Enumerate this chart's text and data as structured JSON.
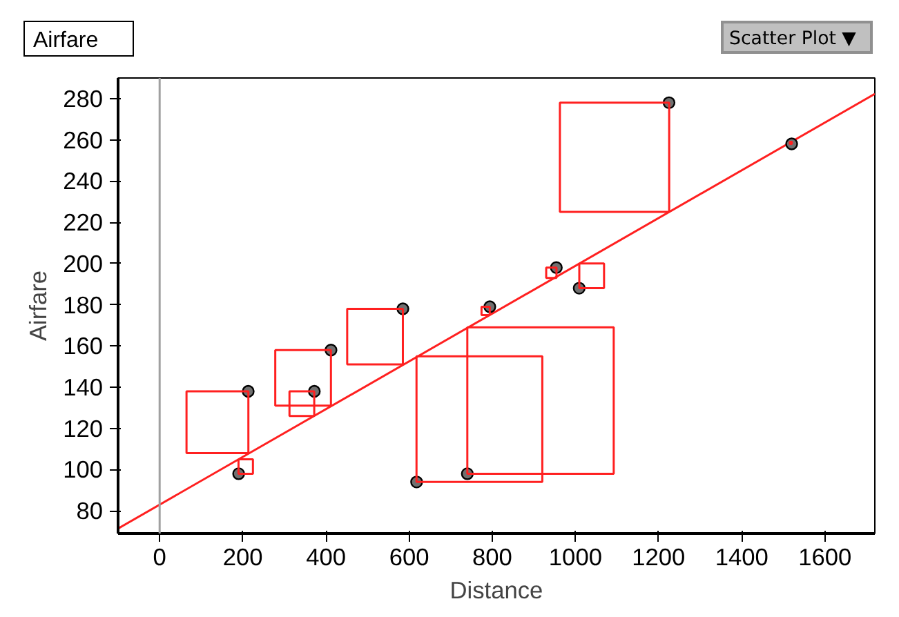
{
  "chart_data": {
    "type": "scatter",
    "title": "Airfare",
    "xlabel": "Distance",
    "ylabel": "Airfare",
    "annotations": [
      "Scatter Plot ▼"
    ],
    "x": [
      190,
      213,
      372,
      412,
      585,
      618,
      740,
      794,
      954,
      1009,
      1225,
      1520
    ],
    "series": [
      {
        "color": "#707070",
        "marker": "circle",
        "values": [
          98,
          138,
          138,
          158,
          178,
          94,
          98,
          179,
          198,
          188,
          278,
          258
        ]
      },
      {
        "type": "bar",
        "color": "#ff2020",
        "x": [
          139,
          207,
          342,
          345,
          518,
          769,
          784,
          916,
          942,
          1039,
          1094,
          1518
        ],
        "base": [
          108,
          98,
          126,
          131,
          151,
          94,
          175,
          98,
          193,
          188,
          225,
          258
        ],
        "values": [
          30,
          7,
          12,
          27,
          27,
          61,
          4,
          71,
          5,
          12,
          53,
          1
        ]
      },
      {
        "type": "line",
        "color": "#ff2020",
        "x": [
          -100,
          1720
        ],
        "values": [
          71.4,
          282.3
        ]
      }
    ],
    "xlim": [
      -100,
      1720
    ],
    "ylim": [
      69,
      290
    ],
    "xticks": [
      0,
      200,
      400,
      600,
      800,
      1000,
      1200,
      1400,
      1600
    ],
    "yticks": [
      80,
      100,
      120,
      140,
      160,
      180,
      200,
      220,
      240,
      260,
      280
    ],
    "ref_lines": [
      {
        "axis": "x",
        "value": 0,
        "label": null,
        "color": "#a0a0a0"
      }
    ],
    "grid": false
  }
}
